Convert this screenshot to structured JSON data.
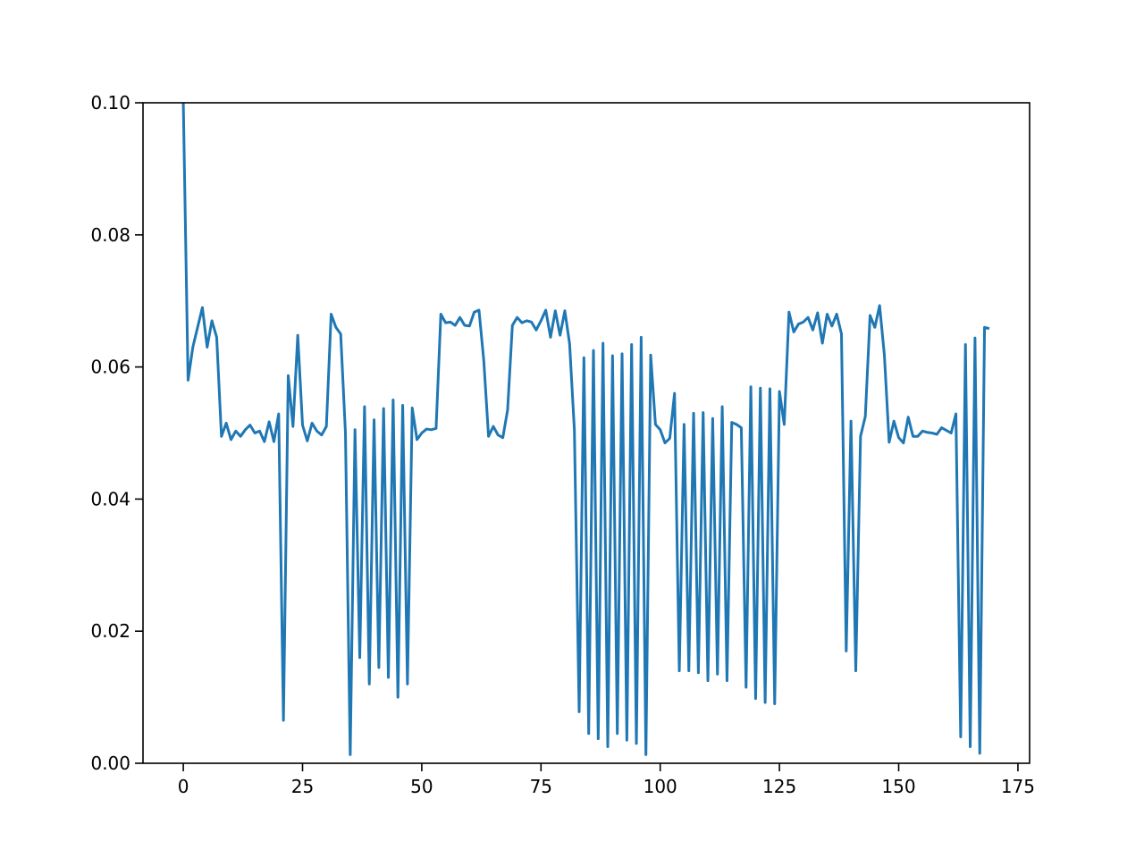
{
  "chart_data": {
    "type": "line",
    "x": [
      0,
      1,
      2,
      3,
      4,
      5,
      6,
      7,
      8,
      9,
      10,
      11,
      12,
      13,
      14,
      15,
      16,
      17,
      18,
      19,
      20,
      21,
      22,
      23,
      24,
      25,
      26,
      27,
      28,
      29,
      30,
      31,
      32,
      33,
      34,
      35,
      36,
      37,
      38,
      39,
      40,
      41,
      42,
      43,
      44,
      45,
      46,
      47,
      48,
      49,
      50,
      51,
      52,
      53,
      54,
      55,
      56,
      57,
      58,
      59,
      60,
      61,
      62,
      63,
      64,
      65,
      66,
      67,
      68,
      69,
      70,
      71,
      72,
      73,
      74,
      75,
      76,
      77,
      78,
      79,
      80,
      81,
      82,
      83,
      84,
      85,
      86,
      87,
      88,
      89,
      90,
      91,
      92,
      93,
      94,
      95,
      96,
      97,
      98,
      99,
      100,
      101,
      102,
      103,
      104,
      105,
      106,
      107,
      108,
      109,
      110,
      111,
      112,
      113,
      114,
      115,
      116,
      117,
      118,
      119,
      120,
      121,
      122,
      123,
      124,
      125,
      126,
      127,
      128,
      129,
      130,
      131,
      132,
      133,
      134,
      135,
      136,
      137,
      138,
      139,
      140,
      141,
      142,
      143,
      144,
      145,
      146,
      147,
      148,
      149,
      150,
      151,
      152,
      153,
      154,
      155,
      156,
      157,
      158,
      159,
      160,
      161,
      162,
      163,
      164,
      165,
      166,
      167,
      168,
      169
    ],
    "series": [
      {
        "color": "#1f77b4",
        "values": [
          0.1,
          0.058,
          0.063,
          0.066,
          0.069,
          0.063,
          0.067,
          0.0645,
          0.0495,
          0.0515,
          0.049,
          0.0503,
          0.0495,
          0.0505,
          0.0512,
          0.05,
          0.0503,
          0.0487,
          0.0517,
          0.0487,
          0.0529,
          0.0065,
          0.0587,
          0.051,
          0.0648,
          0.0512,
          0.0488,
          0.0515,
          0.0503,
          0.0497,
          0.051,
          0.068,
          0.066,
          0.065,
          0.05,
          0.0013,
          0.0505,
          0.016,
          0.054,
          0.012,
          0.052,
          0.0145,
          0.0537,
          0.013,
          0.055,
          0.01,
          0.0542,
          0.012,
          0.0538,
          0.049,
          0.05,
          0.0506,
          0.0505,
          0.0507,
          0.068,
          0.0667,
          0.0668,
          0.0663,
          0.0675,
          0.0663,
          0.0662,
          0.0683,
          0.0686,
          0.061,
          0.0495,
          0.051,
          0.0497,
          0.0493,
          0.0535,
          0.0663,
          0.0675,
          0.0667,
          0.067,
          0.0668,
          0.0656,
          0.067,
          0.0686,
          0.0645,
          0.0685,
          0.0648,
          0.0685,
          0.0635,
          0.0505,
          0.0078,
          0.0614,
          0.0045,
          0.0625,
          0.0037,
          0.0636,
          0.0025,
          0.0617,
          0.0045,
          0.062,
          0.0035,
          0.0634,
          0.003,
          0.0645,
          0.0013,
          0.0618,
          0.0513,
          0.0505,
          0.0485,
          0.0492,
          0.056,
          0.014,
          0.0513,
          0.014,
          0.053,
          0.0137,
          0.0531,
          0.0125,
          0.0522,
          0.0135,
          0.054,
          0.0125,
          0.0516,
          0.0513,
          0.0508,
          0.0115,
          0.057,
          0.0098,
          0.0568,
          0.0092,
          0.0567,
          0.009,
          0.0563,
          0.0513,
          0.0683,
          0.0653,
          0.0665,
          0.0668,
          0.0675,
          0.0656,
          0.0682,
          0.0636,
          0.068,
          0.0662,
          0.068,
          0.065,
          0.017,
          0.0518,
          0.014,
          0.0495,
          0.0525,
          0.0678,
          0.066,
          0.0693,
          0.0618,
          0.0486,
          0.0518,
          0.0493,
          0.0485,
          0.0524,
          0.0495,
          0.0495,
          0.0503,
          0.0501,
          0.05,
          0.0498,
          0.0508,
          0.0504,
          0.05,
          0.0529,
          0.004,
          0.0634,
          0.0025,
          0.0644,
          0.0015,
          0.066,
          0.0658
        ]
      }
    ],
    "xlim": [
      -8.45,
      177.45
    ],
    "xticks": [
      0,
      25,
      50,
      75,
      100,
      125,
      150,
      175
    ],
    "ylim": [
      0,
      0.1
    ],
    "yticks": [
      {
        "value": 0,
        "label": "0.00"
      },
      {
        "value": 0.02,
        "label": "0.02"
      },
      {
        "value": 0.04,
        "label": "0.04"
      },
      {
        "value": 0.06,
        "label": "0.06"
      },
      {
        "value": 0.08,
        "label": "0.08"
      },
      {
        "value": 0.1,
        "label": "0.10"
      }
    ]
  }
}
